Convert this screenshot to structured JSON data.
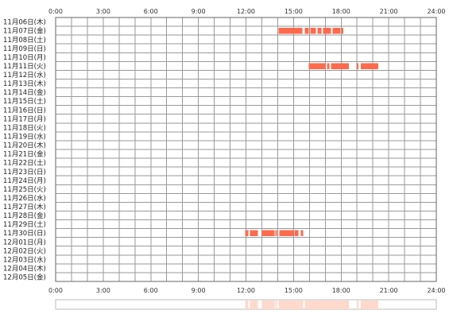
{
  "chart_data": {
    "type": "timeline",
    "x_ticks": [
      "0:00",
      "3:00",
      "6:00",
      "9:00",
      "12:00",
      "15:00",
      "18:00",
      "21:00",
      "24:00"
    ],
    "xlim_hours": [
      0,
      24
    ],
    "grid": true,
    "bar_color": "#ff6a4d",
    "summary_color": "#ffd9cc",
    "rows": [
      "11月06日(木)",
      "11月07日(金)",
      "11月08日(土)",
      "11月09日(日)",
      "11月10日(月)",
      "11月11日(火)",
      "11月12日(水)",
      "11月13日(木)",
      "11月14日(金)",
      "11月15日(土)",
      "11月16日(日)",
      "11月17日(月)",
      "11月18日(火)",
      "11月19日(水)",
      "11月20日(木)",
      "11月21日(金)",
      "11月22日(土)",
      "11月23日(日)",
      "11月24日(月)",
      "11月25日(火)",
      "11月26日(水)",
      "11月27日(木)",
      "11月28日(金)",
      "11月29日(土)",
      "11月30日(日)",
      "12月01日(月)",
      "12月02日(火)",
      "12月03日(水)",
      "12月04日(木)",
      "12月05日(金)"
    ],
    "segments": [
      {
        "row": 1,
        "start": 14.05,
        "end": 15.55
      },
      {
        "row": 1,
        "start": 15.7,
        "end": 15.95
      },
      {
        "row": 1,
        "start": 16.05,
        "end": 16.4
      },
      {
        "row": 1,
        "start": 16.5,
        "end": 16.75
      },
      {
        "row": 1,
        "start": 16.85,
        "end": 17.35
      },
      {
        "row": 1,
        "start": 17.45,
        "end": 17.95
      },
      {
        "row": 1,
        "start": 18.05,
        "end": 18.15
      },
      {
        "row": 5,
        "start": 15.95,
        "end": 17.0
      },
      {
        "row": 5,
        "start": 17.1,
        "end": 17.25
      },
      {
        "row": 5,
        "start": 17.35,
        "end": 18.5
      },
      {
        "row": 5,
        "start": 19.0,
        "end": 19.1
      },
      {
        "row": 5,
        "start": 19.25,
        "end": 20.35
      },
      {
        "row": 24,
        "start": 11.95,
        "end": 12.15
      },
      {
        "row": 24,
        "start": 12.25,
        "end": 12.75
      },
      {
        "row": 24,
        "start": 13.0,
        "end": 13.8
      },
      {
        "row": 24,
        "start": 13.85,
        "end": 13.95
      },
      {
        "row": 24,
        "start": 14.1,
        "end": 15.0
      },
      {
        "row": 24,
        "start": 15.05,
        "end": 15.3
      },
      {
        "row": 24,
        "start": 15.45,
        "end": 15.6
      }
    ]
  }
}
